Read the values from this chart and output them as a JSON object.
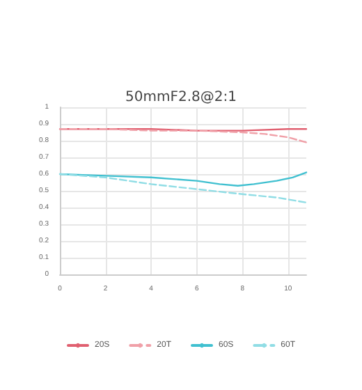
{
  "chart_data": {
    "type": "line",
    "title": "50mmF2.8@2:1",
    "xlim": [
      0,
      10.8
    ],
    "xticks": [
      0,
      2,
      4,
      6,
      8,
      10
    ],
    "ylim": [
      0,
      1
    ],
    "yticks": [
      0,
      0.1,
      0.2,
      0.3,
      0.4,
      0.5,
      0.6,
      0.7,
      0.8,
      0.9,
      1
    ],
    "grid": true,
    "legend": "bottom",
    "marker": "none",
    "series": [
      {
        "name": "20S",
        "color": "#e06070",
        "line_style": "solid",
        "x": [
          0,
          2,
          4,
          6,
          8,
          10,
          10.8
        ],
        "values": [
          0.87,
          0.87,
          0.87,
          0.86,
          0.86,
          0.87,
          0.87
        ]
      },
      {
        "name": "20T",
        "color": "#f0a0a8",
        "line_style": "dashed",
        "x": [
          0,
          2,
          4,
          6,
          8,
          9,
          10,
          10.8
        ],
        "values": [
          0.87,
          0.87,
          0.86,
          0.86,
          0.85,
          0.84,
          0.82,
          0.79
        ]
      },
      {
        "name": "60S",
        "color": "#40c0d0",
        "line_style": "solid",
        "x": [
          0,
          2,
          4,
          6,
          7,
          7.8,
          8.5,
          9.5,
          10.2,
          10.8
        ],
        "values": [
          0.6,
          0.59,
          0.58,
          0.56,
          0.54,
          0.53,
          0.54,
          0.56,
          0.58,
          0.61
        ]
      },
      {
        "name": "60T",
        "color": "#90dde5",
        "line_style": "dashed",
        "x": [
          0,
          2,
          3,
          4,
          6,
          8,
          9.5,
          10.8
        ],
        "values": [
          0.6,
          0.58,
          0.56,
          0.54,
          0.51,
          0.48,
          0.46,
          0.43
        ]
      }
    ]
  }
}
